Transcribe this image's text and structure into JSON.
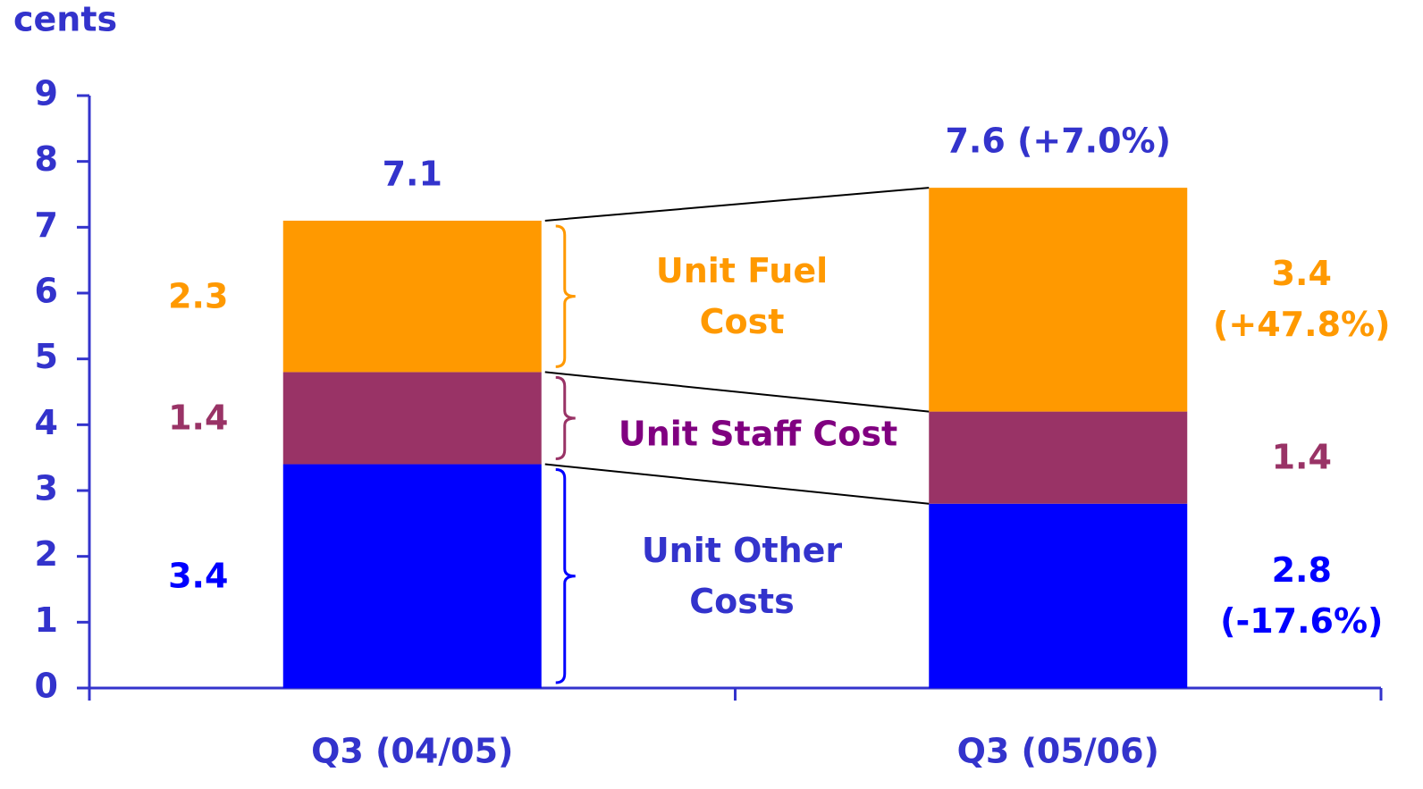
{
  "chart_data": {
    "type": "stacked_bar",
    "y_label": "cents",
    "categories": [
      "Q3 (04/05)",
      "Q3 (05/06)"
    ],
    "series": [
      {
        "name": "Unit Other Costs",
        "color": "#0000ff",
        "label_color": "#3333cc",
        "values": [
          3.4,
          2.8
        ],
        "value_labels": [
          "3.4",
          "2.8 (-17.6%)"
        ]
      },
      {
        "name": "Unit Staff Cost",
        "color": "#993366",
        "label_color": "#800080",
        "values": [
          1.4,
          1.4
        ]
      },
      {
        "name": "Unit Fuel Cost",
        "color": "#ff9900",
        "label_color": "#ff9900",
        "values": [
          2.3,
          3.4
        ],
        "value_labels": [
          "2.3",
          "3.4 (+47.8%)"
        ]
      }
    ],
    "totals": [
      7.1,
      7.6
    ],
    "total_labels": [
      "7.1",
      "7.6 (+7.0%)"
    ],
    "ylim": [
      0,
      9
    ],
    "yticks": [
      0,
      1,
      2,
      3,
      4,
      5,
      6,
      7,
      8,
      9
    ]
  }
}
